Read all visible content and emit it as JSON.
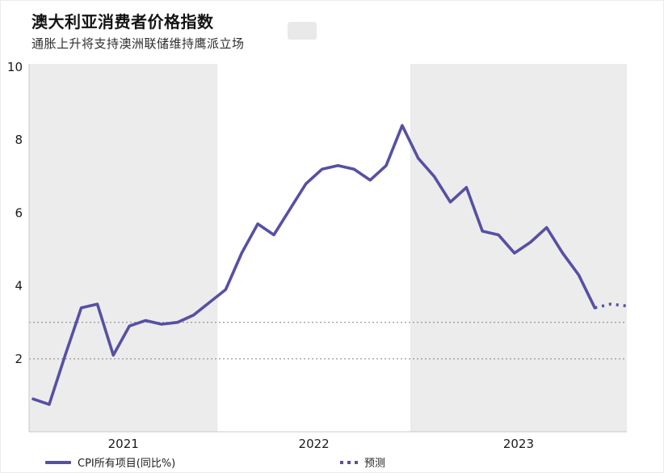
{
  "header": {
    "title": "澳大利亚消费者价格指数",
    "subtitle": "通胀上升将支持澳洲联储维持鹰派立场"
  },
  "legend": {
    "series_label": "CPI所有项目(同比%)",
    "forecast_label": "预测"
  },
  "colors": {
    "line": "#5650a4",
    "band": "#ececec",
    "dashed_line": "#8f8f8f",
    "axis": "#c8c8c8",
    "text": "#1a1a1a"
  },
  "chart_data": {
    "type": "line",
    "title": "澳大利亚消费者价格指数",
    "subtitle": "通胀上升将支持澳洲联储维持鹰派立场",
    "xlabel": "",
    "ylabel": "",
    "ylim": [
      0,
      10
    ],
    "y_ticks": [
      2,
      4,
      6,
      8,
      10
    ],
    "x_year_labels": [
      "2021",
      "2022",
      "2023"
    ],
    "reference_lines": [
      2,
      3
    ],
    "grid": "off",
    "legend_position": "bottom",
    "shaded_year_bands": [
      "2021",
      "2023"
    ],
    "series": [
      {
        "name": "CPI所有项目(同比%)",
        "style": "solid",
        "months": [
          "2021-01",
          "2021-02",
          "2021-03",
          "2021-04",
          "2021-05",
          "2021-06",
          "2021-07",
          "2021-08",
          "2021-09",
          "2021-10",
          "2021-11",
          "2021-12",
          "2022-01",
          "2022-02",
          "2022-03",
          "2022-04",
          "2022-05",
          "2022-06",
          "2022-07",
          "2022-08",
          "2022-09",
          "2022-10",
          "2022-11",
          "2022-12",
          "2023-01",
          "2023-02",
          "2023-03",
          "2023-04",
          "2023-05",
          "2023-06",
          "2023-07",
          "2023-08",
          "2023-09",
          "2023-10",
          "2023-11",
          "2023-12"
        ],
        "values": [
          0.9,
          0.75,
          2.1,
          3.4,
          3.5,
          2.1,
          2.9,
          3.05,
          2.95,
          3.0,
          3.2,
          3.55,
          3.9,
          4.9,
          5.7,
          5.4,
          6.1,
          6.8,
          7.2,
          7.3,
          7.2,
          6.9,
          7.3,
          8.4,
          7.5,
          7.0,
          6.3,
          6.7,
          5.5,
          5.4,
          4.9,
          5.2,
          5.6,
          4.9,
          4.3,
          3.4
        ]
      },
      {
        "name": "预测",
        "style": "dotted",
        "months": [
          "2024-01",
          "2024-02"
        ],
        "values": [
          3.5,
          3.45
        ]
      }
    ]
  }
}
